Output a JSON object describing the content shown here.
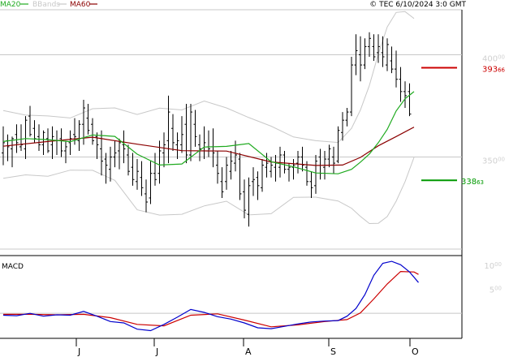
{
  "header": {
    "ma20_label": "MA20",
    "bbands_label": "BBands",
    "ma60_label": "MA60",
    "timestamp": "© TEC 6/10/2024 3:0 GMT"
  },
  "colors": {
    "ma20": "#1faa1f",
    "ma60": "#8b0000",
    "bbands": "#c8c8c8",
    "price_bars": "#000000",
    "resistance": "#cc0000",
    "support": "#009900",
    "macd_line": "#0000cc",
    "signal_line": "#cc0000",
    "grid": "#c8c8c8"
  },
  "chart_data": [
    {
      "type": "line",
      "panel": "price",
      "x_labels": [
        "J",
        "J",
        "A",
        "S",
        "O"
      ],
      "yticks": [
        {
          "int": "400",
          "dec": "00",
          "value": 400
        },
        {
          "int": "350",
          "dec": "00",
          "value": 350
        }
      ],
      "ylim": [
        305,
        422
      ],
      "grid": true,
      "levels": {
        "resistance": {
          "int": "393",
          "dec": "66",
          "value": 393.66
        },
        "support": {
          "int": "338",
          "dec": "63",
          "value": 338.63
        }
      },
      "ohlc": [
        [
          352,
          365,
          346,
          357
        ],
        [
          358,
          361,
          348,
          355
        ],
        [
          354,
          360,
          345,
          359
        ],
        [
          361,
          366,
          352,
          357
        ],
        [
          355,
          366,
          353,
          356
        ],
        [
          354,
          370,
          349,
          368
        ],
        [
          370,
          375,
          360,
          361
        ],
        [
          364,
          368,
          357,
          359
        ],
        [
          360,
          366,
          353,
          356
        ],
        [
          356,
          363,
          351,
          362
        ],
        [
          359,
          364,
          352,
          353
        ],
        [
          356,
          365,
          349,
          360
        ],
        [
          358,
          363,
          351,
          358
        ],
        [
          359,
          364,
          350,
          353
        ],
        [
          353,
          358,
          347,
          355
        ],
        [
          357,
          363,
          351,
          359
        ],
        [
          361,
          369,
          356,
          360
        ],
        [
          358,
          368,
          353,
          366
        ],
        [
          366,
          378,
          356,
          374
        ],
        [
          369,
          376,
          361,
          363
        ],
        [
          366,
          369,
          356,
          358
        ],
        [
          360,
          362,
          349,
          356
        ],
        [
          354,
          363,
          341,
          348
        ],
        [
          349,
          352,
          337,
          346
        ],
        [
          344,
          355,
          338,
          350
        ],
        [
          350,
          358,
          345,
          352
        ],
        [
          353,
          359,
          344,
          357
        ],
        [
          356,
          363,
          347,
          354
        ],
        [
          351,
          356,
          341,
          343
        ],
        [
          345,
          352,
          336,
          339
        ],
        [
          338,
          349,
          334,
          343
        ],
        [
          340,
          348,
          331,
          335
        ],
        [
          332,
          339,
          323,
          328
        ],
        [
          330,
          348,
          327,
          342
        ],
        [
          342,
          352,
          336,
          339
        ],
        [
          342,
          358,
          337,
          353
        ],
        [
          352,
          362,
          345,
          356
        ],
        [
          358,
          380,
          347,
          372
        ],
        [
          364,
          371,
          353,
          357
        ],
        [
          356,
          362,
          349,
          358
        ],
        [
          356,
          370,
          352,
          361
        ],
        [
          366,
          376,
          347,
          351
        ],
        [
          351,
          376,
          348,
          372
        ],
        [
          366,
          373,
          355,
          360
        ],
        [
          356,
          361,
          348,
          354
        ],
        [
          353,
          365,
          349,
          357
        ],
        [
          355,
          363,
          350,
          354
        ],
        [
          355,
          364,
          345,
          352
        ],
        [
          346,
          353,
          337,
          342
        ],
        [
          338,
          345,
          330,
          333
        ],
        [
          338,
          350,
          334,
          346
        ],
        [
          343,
          353,
          339,
          348
        ],
        [
          347,
          358,
          343,
          351
        ],
        [
          349,
          352,
          329,
          332
        ],
        [
          333,
          339,
          320,
          324
        ],
        [
          322,
          340,
          316,
          336
        ],
        [
          338,
          345,
          331,
          339
        ],
        [
          340,
          343,
          329,
          336
        ],
        [
          335,
          349,
          333,
          346
        ],
        [
          345,
          352,
          340,
          347
        ],
        [
          343,
          350,
          340,
          346
        ],
        [
          345,
          351,
          338,
          347
        ],
        [
          345,
          355,
          340,
          351
        ],
        [
          351,
          353,
          342,
          344
        ],
        [
          344,
          347,
          338,
          345
        ],
        [
          345,
          349,
          339,
          346
        ],
        [
          347,
          353,
          342,
          350
        ],
        [
          350,
          355,
          343,
          346
        ],
        [
          345,
          348,
          336,
          338
        ],
        [
          338,
          343,
          330,
          335
        ],
        [
          336,
          351,
          332,
          348
        ],
        [
          350,
          354,
          339,
          342
        ],
        [
          345,
          353,
          339,
          349
        ],
        [
          349,
          356,
          345,
          354
        ],
        [
          350,
          355,
          342,
          347
        ],
        [
          348,
          365,
          347,
          363
        ],
        [
          362,
          372,
          358,
          368
        ],
        [
          368,
          374,
          365,
          372
        ],
        [
          372,
          399,
          370,
          395
        ],
        [
          395,
          410,
          390,
          402
        ],
        [
          400,
          409,
          387,
          395
        ],
        [
          395,
          408,
          393,
          404
        ],
        [
          404,
          411,
          399,
          408
        ],
        [
          404,
          410,
          397,
          399
        ],
        [
          401,
          410,
          396,
          404
        ],
        [
          401,
          409,
          394,
          399
        ],
        [
          395,
          408,
          392,
          405
        ],
        [
          397,
          404,
          391,
          393
        ],
        [
          393,
          402,
          384,
          388
        ],
        [
          388,
          394,
          377,
          382
        ],
        [
          382,
          387,
          374,
          380
        ],
        [
          382,
          386,
          370,
          371
        ]
      ],
      "series": [
        {
          "name": "MA20",
          "points": [
            [
              0,
              357.6
            ],
            [
              5,
              359.0
            ],
            [
              10,
              358.5
            ],
            [
              15,
              357.5
            ],
            [
              20,
              360.8
            ],
            [
              25,
              360.1
            ],
            [
              30,
              351.4
            ],
            [
              35,
              346.1
            ],
            [
              40,
              346.6
            ],
            [
              45,
              354.9
            ],
            [
              50,
              355.2
            ],
            [
              55,
              356.6
            ],
            [
              60,
              347.7
            ],
            [
              65,
              345.2
            ],
            [
              70,
              342.2
            ],
            [
              75,
              341.8
            ],
            [
              78,
              344.0
            ],
            [
              80,
              347.5
            ],
            [
              82,
              351.5
            ],
            [
              84,
              357.0
            ],
            [
              86,
              363.5
            ],
            [
              88,
              372.5
            ],
            [
              90,
              378.5
            ],
            [
              92,
              382.0
            ]
          ]
        },
        {
          "name": "MA60",
          "points": [
            [
              0,
              355.3
            ],
            [
              10,
              357.6
            ],
            [
              20,
              359.7
            ],
            [
              30,
              356.3
            ],
            [
              40,
              353.1
            ],
            [
              50,
              352.9
            ],
            [
              60,
              347.6
            ],
            [
              70,
              345.9
            ],
            [
              76,
              346.1
            ],
            [
              80,
              349.8
            ],
            [
              84,
              355.5
            ],
            [
              88,
              360.0
            ],
            [
              92,
              364.6
            ]
          ]
        },
        {
          "name": "BBands",
          "points_upper": [
            [
              0,
              372.7
            ],
            [
              5,
              370.5
            ],
            [
              10,
              370.1
            ],
            [
              15,
              369.1
            ],
            [
              20,
              373.6
            ],
            [
              25,
              374.0
            ],
            [
              30,
              370.8
            ],
            [
              35,
              373.9
            ],
            [
              40,
              373.0
            ],
            [
              45,
              377.4
            ],
            [
              50,
              374.0
            ],
            [
              55,
              369.3
            ],
            [
              60,
              365.1
            ],
            [
              65,
              359.8
            ],
            [
              70,
              358.0
            ],
            [
              75,
              357.1
            ],
            [
              78,
              364.0
            ],
            [
              80,
              373.0
            ],
            [
              82,
              385.0
            ],
            [
              84,
              400.3
            ],
            [
              86,
              413.6
            ],
            [
              88,
              420.7
            ],
            [
              90,
              421.1
            ],
            [
              92,
              417.7
            ]
          ],
          "points_lower": [
            [
              0,
              339.6
            ],
            [
              5,
              341.3
            ],
            [
              10,
              340.6
            ],
            [
              15,
              343.6
            ],
            [
              20,
              343.5
            ],
            [
              25,
              338.6
            ],
            [
              30,
              324.2
            ],
            [
              35,
              321.6
            ],
            [
              40,
              322.0
            ],
            [
              45,
              326.1
            ],
            [
              50,
              328.4
            ],
            [
              55,
              321.7
            ],
            [
              60,
              322.3
            ],
            [
              65,
              330.3
            ],
            [
              70,
              330.4
            ],
            [
              75,
              328.5
            ],
            [
              78,
              325.0
            ],
            [
              80,
              321.0
            ],
            [
              82,
              317.5
            ],
            [
              84,
              317.6
            ],
            [
              86,
              320.9
            ],
            [
              88,
              328.4
            ],
            [
              90,
              338.0
            ],
            [
              92,
              349.8
            ]
          ]
        }
      ]
    },
    {
      "type": "line",
      "panel": "macd",
      "title": "MACD",
      "yticks": [
        {
          "int": "10",
          "dec": "00",
          "value": 10
        },
        {
          "int": "5",
          "dec": "00",
          "value": 5
        }
      ],
      "ylim": [
        -5.2,
        11.5
      ],
      "grid": true,
      "series": [
        {
          "name": "MACD",
          "points": [
            [
              0,
              -0.4
            ],
            [
              3,
              -0.5
            ],
            [
              6,
              0.0
            ],
            [
              9,
              -0.6
            ],
            [
              12,
              -0.3
            ],
            [
              15,
              -0.4
            ],
            [
              18,
              0.4
            ],
            [
              21,
              -0.6
            ],
            [
              24,
              -1.7
            ],
            [
              27,
              -2.0
            ],
            [
              30,
              -3.3
            ],
            [
              33,
              -3.6
            ],
            [
              36,
              -2.3
            ],
            [
              39,
              -0.8
            ],
            [
              42,
              0.8
            ],
            [
              45,
              0.2
            ],
            [
              48,
              -0.7
            ],
            [
              51,
              -1.2
            ],
            [
              54,
              -2.0
            ],
            [
              57,
              -3.0
            ],
            [
              60,
              -3.2
            ],
            [
              63,
              -2.7
            ],
            [
              66,
              -2.2
            ],
            [
              69,
              -1.8
            ],
            [
              72,
              -1.6
            ],
            [
              75,
              -1.5
            ],
            [
              77,
              -0.6
            ],
            [
              79,
              1.0
            ],
            [
              81,
              3.9
            ],
            [
              83,
              7.9
            ],
            [
              85,
              10.4
            ],
            [
              87,
              10.8
            ],
            [
              89,
              10.1
            ],
            [
              91,
              8.6
            ],
            [
              93,
              6.4
            ]
          ]
        },
        {
          "name": "Signal",
          "points": [
            [
              0,
              -0.2
            ],
            [
              6,
              -0.2
            ],
            [
              12,
              -0.3
            ],
            [
              18,
              -0.2
            ],
            [
              24,
              -0.9
            ],
            [
              30,
              -2.3
            ],
            [
              36,
              -2.6
            ],
            [
              42,
              -0.4
            ],
            [
              48,
              -0.1
            ],
            [
              54,
              -1.4
            ],
            [
              60,
              -2.8
            ],
            [
              66,
              -2.4
            ],
            [
              72,
              -1.7
            ],
            [
              77,
              -1.3
            ],
            [
              80,
              0.1
            ],
            [
              83,
              3.0
            ],
            [
              86,
              6.1
            ],
            [
              89,
              8.7
            ],
            [
              92,
              8.6
            ],
            [
              93,
              8.1
            ]
          ]
        }
      ]
    }
  ]
}
